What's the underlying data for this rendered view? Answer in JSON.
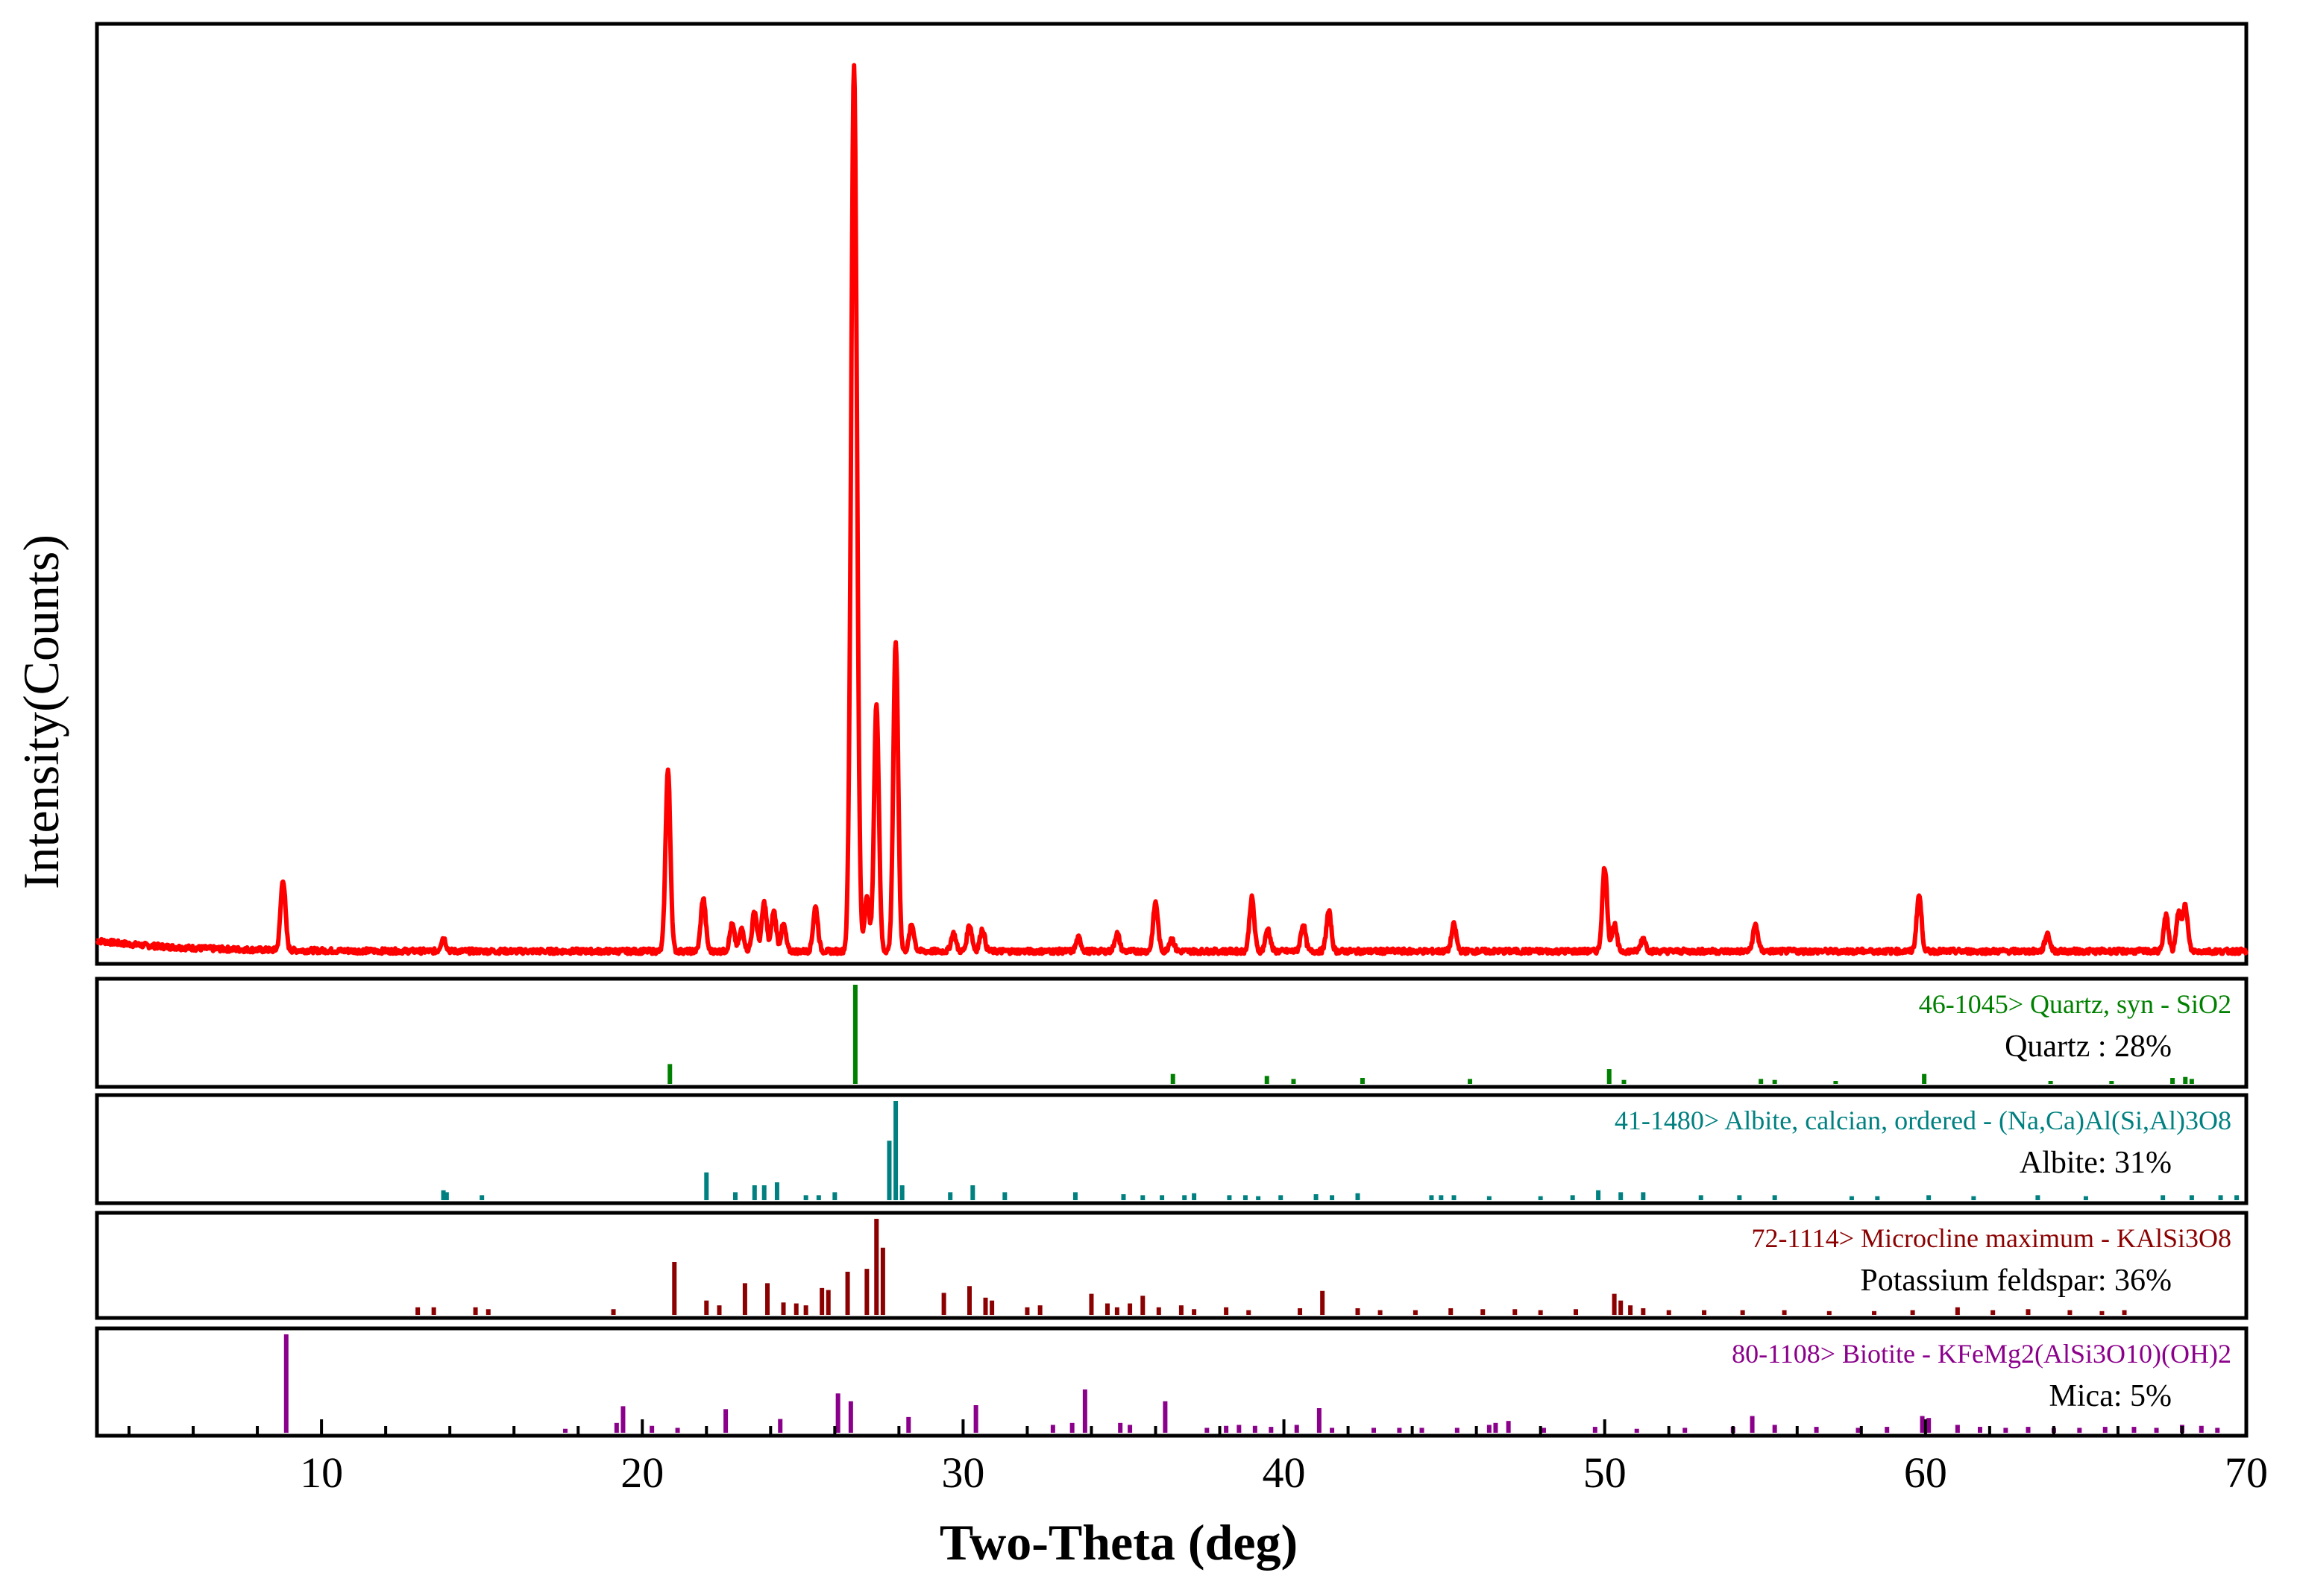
{
  "chart_data": {
    "type": "line",
    "xlabel": "Two-Theta (deg)",
    "ylabel": "Intensity(Counts)",
    "xlim": [
      3,
      70
    ],
    "x_ticks": [
      10,
      20,
      30,
      40,
      50,
      60,
      70
    ],
    "x_tick_labels": [
      "10",
      "20",
      "30",
      "40",
      "50",
      "60",
      "70"
    ],
    "y_ticks_shown": false,
    "grid": false,
    "main_pattern": {
      "color": "#ff0000",
      "units": "relative intensity (0-1)",
      "background": 0.005,
      "peaks": [
        {
          "x": 8.8,
          "y": 0.08
        },
        {
          "x": 13.8,
          "y": 0.015
        },
        {
          "x": 20.8,
          "y": 0.205
        },
        {
          "x": 21.9,
          "y": 0.06
        },
        {
          "x": 22.8,
          "y": 0.03
        },
        {
          "x": 23.1,
          "y": 0.025
        },
        {
          "x": 23.5,
          "y": 0.045
        },
        {
          "x": 23.8,
          "y": 0.055
        },
        {
          "x": 24.1,
          "y": 0.045
        },
        {
          "x": 24.4,
          "y": 0.03
        },
        {
          "x": 25.4,
          "y": 0.05
        },
        {
          "x": 26.6,
          "y": 1.0
        },
        {
          "x": 27.0,
          "y": 0.06
        },
        {
          "x": 27.3,
          "y": 0.28
        },
        {
          "x": 27.9,
          "y": 0.35
        },
        {
          "x": 28.4,
          "y": 0.03
        },
        {
          "x": 29.7,
          "y": 0.02
        },
        {
          "x": 30.2,
          "y": 0.03
        },
        {
          "x": 30.6,
          "y": 0.025
        },
        {
          "x": 33.6,
          "y": 0.015
        },
        {
          "x": 34.8,
          "y": 0.02
        },
        {
          "x": 36.0,
          "y": 0.055
        },
        {
          "x": 36.5,
          "y": 0.015
        },
        {
          "x": 39.0,
          "y": 0.06
        },
        {
          "x": 39.5,
          "y": 0.025
        },
        {
          "x": 40.6,
          "y": 0.03
        },
        {
          "x": 41.4,
          "y": 0.045
        },
        {
          "x": 45.3,
          "y": 0.03
        },
        {
          "x": 50.0,
          "y": 0.095
        },
        {
          "x": 50.3,
          "y": 0.03
        },
        {
          "x": 51.2,
          "y": 0.015
        },
        {
          "x": 54.7,
          "y": 0.03
        },
        {
          "x": 59.8,
          "y": 0.063
        },
        {
          "x": 63.8,
          "y": 0.02
        },
        {
          "x": 67.5,
          "y": 0.04
        },
        {
          "x": 67.9,
          "y": 0.045
        },
        {
          "x": 68.1,
          "y": 0.05
        }
      ]
    },
    "reference_patterns": [
      {
        "title": "46-1045> Quartz, syn - SiO2",
        "phase_label": "Quartz : 28%",
        "color": "#008000",
        "sticks": [
          {
            "x": 20.86,
            "y": 0.2
          },
          {
            "x": 26.64,
            "y": 1.0
          },
          {
            "x": 36.54,
            "y": 0.1
          },
          {
            "x": 39.47,
            "y": 0.08
          },
          {
            "x": 40.3,
            "y": 0.05
          },
          {
            "x": 42.45,
            "y": 0.06
          },
          {
            "x": 45.8,
            "y": 0.05
          },
          {
            "x": 50.14,
            "y": 0.15
          },
          {
            "x": 50.6,
            "y": 0.04
          },
          {
            "x": 54.87,
            "y": 0.05
          },
          {
            "x": 55.3,
            "y": 0.04
          },
          {
            "x": 57.2,
            "y": 0.03
          },
          {
            "x": 59.96,
            "y": 0.1
          },
          {
            "x": 63.9,
            "y": 0.03
          },
          {
            "x": 65.8,
            "y": 0.03
          },
          {
            "x": 67.7,
            "y": 0.06
          },
          {
            "x": 68.1,
            "y": 0.07
          },
          {
            "x": 68.3,
            "y": 0.05
          }
        ]
      },
      {
        "title": "41-1480> Albite, calcian, ordered - (Na,Ca)Al(Si,Al)3O8",
        "phase_label": "Albite: 31%",
        "color": "#008080",
        "sticks": [
          {
            "x": 13.8,
            "y": 0.1
          },
          {
            "x": 13.9,
            "y": 0.08
          },
          {
            "x": 15.0,
            "y": 0.05
          },
          {
            "x": 22.0,
            "y": 0.28
          },
          {
            "x": 22.9,
            "y": 0.08
          },
          {
            "x": 23.5,
            "y": 0.15
          },
          {
            "x": 23.8,
            "y": 0.15
          },
          {
            "x": 24.2,
            "y": 0.18
          },
          {
            "x": 25.1,
            "y": 0.05
          },
          {
            "x": 25.5,
            "y": 0.05
          },
          {
            "x": 26.0,
            "y": 0.08
          },
          {
            "x": 27.7,
            "y": 0.6
          },
          {
            "x": 27.9,
            "y": 1.0
          },
          {
            "x": 28.1,
            "y": 0.15
          },
          {
            "x": 29.6,
            "y": 0.08
          },
          {
            "x": 30.3,
            "y": 0.15
          },
          {
            "x": 31.3,
            "y": 0.08
          },
          {
            "x": 33.5,
            "y": 0.08
          },
          {
            "x": 35.0,
            "y": 0.06
          },
          {
            "x": 35.6,
            "y": 0.05
          },
          {
            "x": 36.2,
            "y": 0.05
          },
          {
            "x": 36.9,
            "y": 0.05
          },
          {
            "x": 37.2,
            "y": 0.07
          },
          {
            "x": 38.3,
            "y": 0.05
          },
          {
            "x": 38.8,
            "y": 0.05
          },
          {
            "x": 39.2,
            "y": 0.04
          },
          {
            "x": 39.9,
            "y": 0.05
          },
          {
            "x": 41.0,
            "y": 0.06
          },
          {
            "x": 41.5,
            "y": 0.05
          },
          {
            "x": 42.3,
            "y": 0.07
          },
          {
            "x": 44.6,
            "y": 0.05
          },
          {
            "x": 44.9,
            "y": 0.05
          },
          {
            "x": 45.3,
            "y": 0.05
          },
          {
            "x": 46.4,
            "y": 0.04
          },
          {
            "x": 48.0,
            "y": 0.04
          },
          {
            "x": 49.0,
            "y": 0.05
          },
          {
            "x": 49.8,
            "y": 0.1
          },
          {
            "x": 50.5,
            "y": 0.08
          },
          {
            "x": 51.2,
            "y": 0.08
          },
          {
            "x": 53.0,
            "y": 0.05
          },
          {
            "x": 54.2,
            "y": 0.05
          },
          {
            "x": 55.3,
            "y": 0.05
          },
          {
            "x": 57.7,
            "y": 0.04
          },
          {
            "x": 58.5,
            "y": 0.04
          },
          {
            "x": 60.1,
            "y": 0.05
          },
          {
            "x": 61.5,
            "y": 0.04
          },
          {
            "x": 63.5,
            "y": 0.05
          },
          {
            "x": 65.0,
            "y": 0.04
          },
          {
            "x": 67.4,
            "y": 0.05
          },
          {
            "x": 68.3,
            "y": 0.05
          },
          {
            "x": 69.2,
            "y": 0.05
          },
          {
            "x": 69.7,
            "y": 0.05
          }
        ]
      },
      {
        "title": "72-1114> Microcline maximum - KAlSi3O8",
        "phase_label": "Potassium feldspar: 36%",
        "color": "#8b0000",
        "sticks": [
          {
            "x": 13.0,
            "y": 0.08
          },
          {
            "x": 13.5,
            "y": 0.08
          },
          {
            "x": 14.8,
            "y": 0.08
          },
          {
            "x": 15.2,
            "y": 0.06
          },
          {
            "x": 19.1,
            "y": 0.06
          },
          {
            "x": 21.0,
            "y": 0.55
          },
          {
            "x": 22.0,
            "y": 0.15
          },
          {
            "x": 22.4,
            "y": 0.1
          },
          {
            "x": 23.2,
            "y": 0.33
          },
          {
            "x": 23.9,
            "y": 0.33
          },
          {
            "x": 24.4,
            "y": 0.13
          },
          {
            "x": 24.8,
            "y": 0.12
          },
          {
            "x": 25.1,
            "y": 0.1
          },
          {
            "x": 25.6,
            "y": 0.28
          },
          {
            "x": 25.8,
            "y": 0.26
          },
          {
            "x": 26.4,
            "y": 0.45
          },
          {
            "x": 27.0,
            "y": 0.48
          },
          {
            "x": 27.3,
            "y": 1.0
          },
          {
            "x": 27.5,
            "y": 0.7
          },
          {
            "x": 29.4,
            "y": 0.23
          },
          {
            "x": 30.2,
            "y": 0.3
          },
          {
            "x": 30.7,
            "y": 0.18
          },
          {
            "x": 30.9,
            "y": 0.15
          },
          {
            "x": 32.0,
            "y": 0.08
          },
          {
            "x": 32.4,
            "y": 0.1
          },
          {
            "x": 34.0,
            "y": 0.22
          },
          {
            "x": 34.5,
            "y": 0.12
          },
          {
            "x": 34.8,
            "y": 0.08
          },
          {
            "x": 35.2,
            "y": 0.12
          },
          {
            "x": 35.6,
            "y": 0.2
          },
          {
            "x": 36.1,
            "y": 0.08
          },
          {
            "x": 36.8,
            "y": 0.1
          },
          {
            "x": 37.2,
            "y": 0.06
          },
          {
            "x": 38.2,
            "y": 0.08
          },
          {
            "x": 38.9,
            "y": 0.05
          },
          {
            "x": 40.5,
            "y": 0.07
          },
          {
            "x": 41.2,
            "y": 0.25
          },
          {
            "x": 42.3,
            "y": 0.07
          },
          {
            "x": 43.0,
            "y": 0.05
          },
          {
            "x": 44.1,
            "y": 0.05
          },
          {
            "x": 45.2,
            "y": 0.07
          },
          {
            "x": 46.2,
            "y": 0.06
          },
          {
            "x": 47.2,
            "y": 0.06
          },
          {
            "x": 48.0,
            "y": 0.05
          },
          {
            "x": 49.1,
            "y": 0.06
          },
          {
            "x": 50.3,
            "y": 0.22
          },
          {
            "x": 50.5,
            "y": 0.15
          },
          {
            "x": 50.8,
            "y": 0.1
          },
          {
            "x": 51.2,
            "y": 0.07
          },
          {
            "x": 52.0,
            "y": 0.05
          },
          {
            "x": 53.1,
            "y": 0.05
          },
          {
            "x": 54.3,
            "y": 0.05
          },
          {
            "x": 55.6,
            "y": 0.05
          },
          {
            "x": 57.0,
            "y": 0.04
          },
          {
            "x": 58.4,
            "y": 0.04
          },
          {
            "x": 59.6,
            "y": 0.05
          },
          {
            "x": 61.0,
            "y": 0.08
          },
          {
            "x": 62.1,
            "y": 0.05
          },
          {
            "x": 63.2,
            "y": 0.06
          },
          {
            "x": 64.5,
            "y": 0.05
          },
          {
            "x": 65.5,
            "y": 0.04
          },
          {
            "x": 66.2,
            "y": 0.05
          }
        ]
      },
      {
        "title": "80-1108> Biotite - KFeMg2(AlSi3O10)(OH)2",
        "phase_label": "Mica: 5%",
        "color": "#8b008b",
        "sticks": [
          {
            "x": 8.9,
            "y": 1.0
          },
          {
            "x": 17.6,
            "y": 0.04
          },
          {
            "x": 19.2,
            "y": 0.1
          },
          {
            "x": 19.4,
            "y": 0.27
          },
          {
            "x": 20.3,
            "y": 0.07
          },
          {
            "x": 21.1,
            "y": 0.05
          },
          {
            "x": 22.6,
            "y": 0.24
          },
          {
            "x": 24.3,
            "y": 0.14
          },
          {
            "x": 26.1,
            "y": 0.4
          },
          {
            "x": 26.5,
            "y": 0.32
          },
          {
            "x": 28.3,
            "y": 0.16
          },
          {
            "x": 30.4,
            "y": 0.28
          },
          {
            "x": 32.8,
            "y": 0.08
          },
          {
            "x": 33.4,
            "y": 0.1
          },
          {
            "x": 33.8,
            "y": 0.44
          },
          {
            "x": 34.9,
            "y": 0.1
          },
          {
            "x": 35.2,
            "y": 0.08
          },
          {
            "x": 36.3,
            "y": 0.32
          },
          {
            "x": 37.6,
            "y": 0.05
          },
          {
            "x": 38.2,
            "y": 0.07
          },
          {
            "x": 38.6,
            "y": 0.08
          },
          {
            "x": 39.1,
            "y": 0.07
          },
          {
            "x": 39.6,
            "y": 0.06
          },
          {
            "x": 40.4,
            "y": 0.08
          },
          {
            "x": 41.1,
            "y": 0.25
          },
          {
            "x": 41.5,
            "y": 0.05
          },
          {
            "x": 42.8,
            "y": 0.05
          },
          {
            "x": 43.6,
            "y": 0.05
          },
          {
            "x": 44.3,
            "y": 0.05
          },
          {
            "x": 45.4,
            "y": 0.05
          },
          {
            "x": 46.4,
            "y": 0.08
          },
          {
            "x": 46.6,
            "y": 0.1
          },
          {
            "x": 47.0,
            "y": 0.12
          },
          {
            "x": 48.1,
            "y": 0.05
          },
          {
            "x": 49.7,
            "y": 0.06
          },
          {
            "x": 51.0,
            "y": 0.04
          },
          {
            "x": 52.5,
            "y": 0.05
          },
          {
            "x": 54.0,
            "y": 0.06
          },
          {
            "x": 54.6,
            "y": 0.17
          },
          {
            "x": 55.3,
            "y": 0.08
          },
          {
            "x": 56.6,
            "y": 0.06
          },
          {
            "x": 57.9,
            "y": 0.05
          },
          {
            "x": 58.8,
            "y": 0.06
          },
          {
            "x": 59.9,
            "y": 0.17
          },
          {
            "x": 60.1,
            "y": 0.15
          },
          {
            "x": 61.0,
            "y": 0.08
          },
          {
            "x": 61.7,
            "y": 0.06
          },
          {
            "x": 62.5,
            "y": 0.05
          },
          {
            "x": 63.2,
            "y": 0.06
          },
          {
            "x": 64.0,
            "y": 0.05
          },
          {
            "x": 64.8,
            "y": 0.05
          },
          {
            "x": 65.6,
            "y": 0.06
          },
          {
            "x": 66.5,
            "y": 0.06
          },
          {
            "x": 67.2,
            "y": 0.05
          },
          {
            "x": 68.0,
            "y": 0.08
          },
          {
            "x": 68.6,
            "y": 0.07
          },
          {
            "x": 69.1,
            "y": 0.05
          }
        ]
      }
    ]
  }
}
